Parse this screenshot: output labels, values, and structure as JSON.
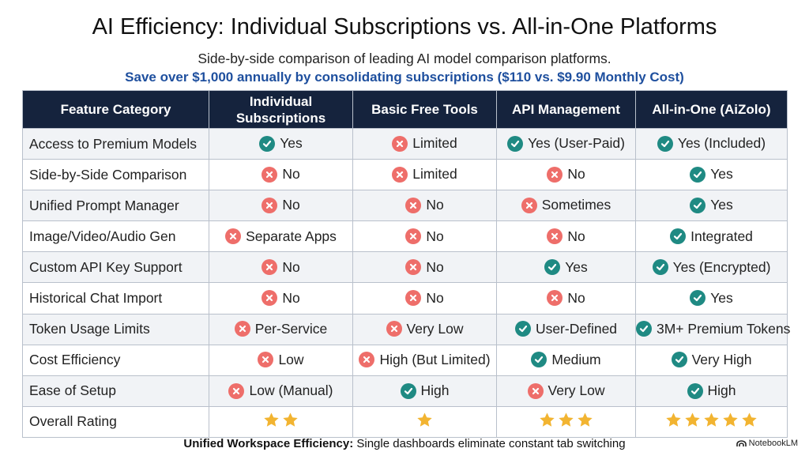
{
  "header": {
    "title": "AI Efficiency: Individual Subscriptions vs. All-in-One Platforms",
    "subtitle": "Side-by-side comparison of leading AI model comparison platforms.",
    "highlight": "Save over $1,000 annually by consolidating subscriptions ($110 vs. $9.90 Monthly Cost)"
  },
  "colors": {
    "header_bg": "#15233d",
    "check": "#1f8a83",
    "cross": "#ee6e6a",
    "star": "#f2b431",
    "highlight": "#1e4f9e"
  },
  "table": {
    "headers": [
      "Feature Category",
      "Individual Subscriptions",
      "Basic Free Tools",
      "API Management",
      "All-in-One (AiZolo)"
    ],
    "rows": [
      {
        "feature": "Access to Premium Models",
        "cells": [
          {
            "status": "yes",
            "text": "Yes"
          },
          {
            "status": "no",
            "text": "Limited"
          },
          {
            "status": "yes",
            "text": "Yes (User-Paid)"
          },
          {
            "status": "yes",
            "text": "Yes (Included)"
          }
        ]
      },
      {
        "feature": "Side-by-Side Comparison",
        "cells": [
          {
            "status": "no",
            "text": "No"
          },
          {
            "status": "no",
            "text": "Limited"
          },
          {
            "status": "no",
            "text": "No"
          },
          {
            "status": "yes",
            "text": "Yes"
          }
        ]
      },
      {
        "feature": "Unified Prompt Manager",
        "cells": [
          {
            "status": "no",
            "text": "No"
          },
          {
            "status": "no",
            "text": "No"
          },
          {
            "status": "no",
            "text": "Sometimes"
          },
          {
            "status": "yes",
            "text": "Yes"
          }
        ]
      },
      {
        "feature": "Image/Video/Audio Gen",
        "cells": [
          {
            "status": "no",
            "text": "Separate Apps"
          },
          {
            "status": "no",
            "text": "No"
          },
          {
            "status": "no",
            "text": "No"
          },
          {
            "status": "yes",
            "text": "Integrated"
          }
        ]
      },
      {
        "feature": "Custom API Key Support",
        "cells": [
          {
            "status": "no",
            "text": "No"
          },
          {
            "status": "no",
            "text": "No"
          },
          {
            "status": "yes",
            "text": "Yes"
          },
          {
            "status": "yes",
            "text": "Yes (Encrypted)"
          }
        ]
      },
      {
        "feature": "Historical Chat Import",
        "cells": [
          {
            "status": "no",
            "text": "No"
          },
          {
            "status": "no",
            "text": "No"
          },
          {
            "status": "no",
            "text": "No"
          },
          {
            "status": "yes",
            "text": "Yes"
          }
        ]
      },
      {
        "feature": "Token Usage Limits",
        "cells": [
          {
            "status": "no",
            "text": "Per-Service"
          },
          {
            "status": "no",
            "text": "Very Low"
          },
          {
            "status": "yes",
            "text": "User-Defined"
          },
          {
            "status": "yes",
            "text": "3M+ Premium Tokens"
          }
        ]
      },
      {
        "feature": "Cost Efficiency",
        "cells": [
          {
            "status": "no",
            "text": "Low"
          },
          {
            "status": "no",
            "text": "High (But Limited)"
          },
          {
            "status": "yes",
            "text": "Medium"
          },
          {
            "status": "yes",
            "text": "Very High"
          }
        ]
      },
      {
        "feature": "Ease of Setup",
        "cells": [
          {
            "status": "no",
            "text": "Low (Manual)"
          },
          {
            "status": "yes",
            "text": "High"
          },
          {
            "status": "no",
            "text": "Very Low"
          },
          {
            "status": "yes",
            "text": "High"
          }
        ]
      }
    ],
    "rating": {
      "feature": "Overall Rating",
      "stars": [
        2,
        1,
        3,
        5
      ]
    }
  },
  "footer": {
    "bold": "Unified Workspace Efficiency:",
    "text": " Single dashboards eliminate constant tab switching"
  },
  "brand": {
    "name": "NotebookLM",
    "icon": "notebooklm-logo-icon"
  }
}
